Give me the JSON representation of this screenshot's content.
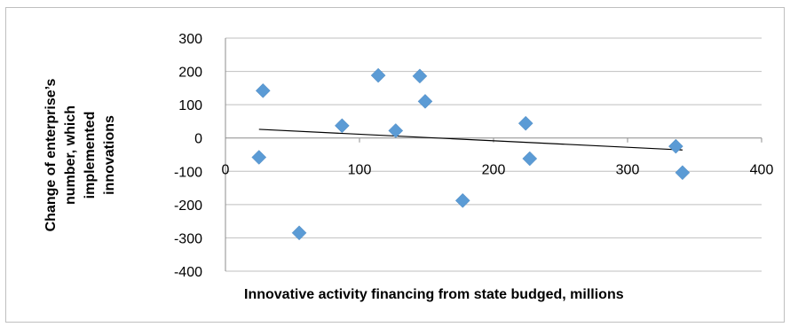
{
  "chart_data": {
    "type": "scatter",
    "title": "",
    "xlabel": "Innovative activity financing from state budged, millions",
    "ylabel": [
      "Change of enterprise’s",
      "number, which",
      "implemented",
      "innovations"
    ],
    "xlim": [
      0,
      400
    ],
    "ylim": [
      -400,
      300
    ],
    "x_ticks": [
      "0",
      "100",
      "200",
      "300",
      "400"
    ],
    "y_ticks": [
      "300",
      "200",
      "100",
      "0",
      "-100",
      "-200",
      "-300",
      "-400"
    ],
    "grid": "horizontal",
    "legend": "none",
    "marker_color": "#5b9bd5",
    "trendline_color": "#000000",
    "series": [
      {
        "points": [
          {
            "x": 25,
            "y": -58
          },
          {
            "x": 28,
            "y": 142
          },
          {
            "x": 55,
            "y": -285
          },
          {
            "x": 87,
            "y": 37
          },
          {
            "x": 114,
            "y": 188
          },
          {
            "x": 127,
            "y": 22
          },
          {
            "x": 145,
            "y": 186
          },
          {
            "x": 149,
            "y": 110
          },
          {
            "x": 177,
            "y": -188
          },
          {
            "x": 224,
            "y": 44
          },
          {
            "x": 227,
            "y": -62
          },
          {
            "x": 336,
            "y": -25
          },
          {
            "x": 341,
            "y": -104
          }
        ]
      }
    ],
    "trendline": {
      "x": [
        25,
        341
      ],
      "y": [
        26,
        -36
      ]
    }
  }
}
